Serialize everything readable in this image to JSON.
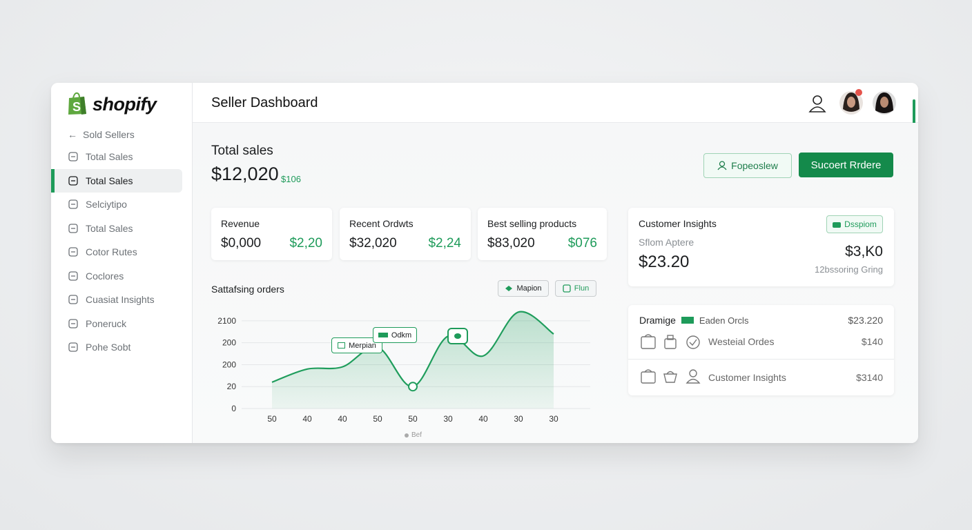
{
  "sidebar": {
    "logo": "shopify",
    "back": "Sold Sellers",
    "items": [
      "Total Sales",
      "Total Sales",
      "Selciytipo",
      "Total Sales",
      "Cotor Rutes",
      "Coclores",
      "Cuasiat Insights",
      "Poneruck",
      "Pohe Sobt"
    ]
  },
  "header": {
    "title": "Seller Dashboard"
  },
  "summary": {
    "title": "Total sales",
    "value": "$12,020",
    "delta": "$106"
  },
  "buttons": [
    "Fopeoslew",
    "Sucoert Rrdere"
  ],
  "stats": [
    {
      "label": "Revenue",
      "value": "$0,000",
      "delta": "$2,20"
    },
    {
      "label": "Recent Ordwts",
      "value": "$32,020",
      "delta": "$2,24"
    },
    {
      "label": "Best selling products",
      "value": "$83,020",
      "delta": "$076"
    }
  ],
  "insights": {
    "title": "Customer Insights",
    "badge": "Dsspiom",
    "subtitle": "Sflom Aptere",
    "value": "$23.20",
    "right_value": "$3,K0",
    "right_subtitle": "12bssoring Gring"
  },
  "orders": {
    "title": "Dramige",
    "legend": "Eaden Orcls",
    "amount": "$23.220",
    "rows": [
      {
        "label": "Westeial Ordes",
        "amount": "$140"
      },
      {
        "label": "Customer Insights",
        "amount": "$3140"
      }
    ]
  },
  "chart_data": {
    "type": "line",
    "title": "Sattafsing orders",
    "legend": [
      "Mapion",
      "Flun"
    ],
    "annotations": [
      "Merpian",
      "Odkm"
    ],
    "footer": "Bef",
    "categories": [
      "50",
      "40",
      "40",
      "50",
      "50",
      "30",
      "40",
      "30",
      "30"
    ],
    "values": [
      1.2,
      1.8,
      1.9,
      2.8,
      1.0,
      3.3,
      2.4,
      4.4,
      3.4
    ],
    "color": "#1f9d5c",
    "ylim": [
      0,
      4.5
    ],
    "yticks": [
      0,
      {
        "value": 1,
        "label": "20"
      },
      {
        "value": 2,
        "label": "200"
      },
      {
        "value": 3,
        "label": "200"
      },
      {
        "value": 4,
        "label": "2100"
      }
    ],
    "grid": true
  }
}
